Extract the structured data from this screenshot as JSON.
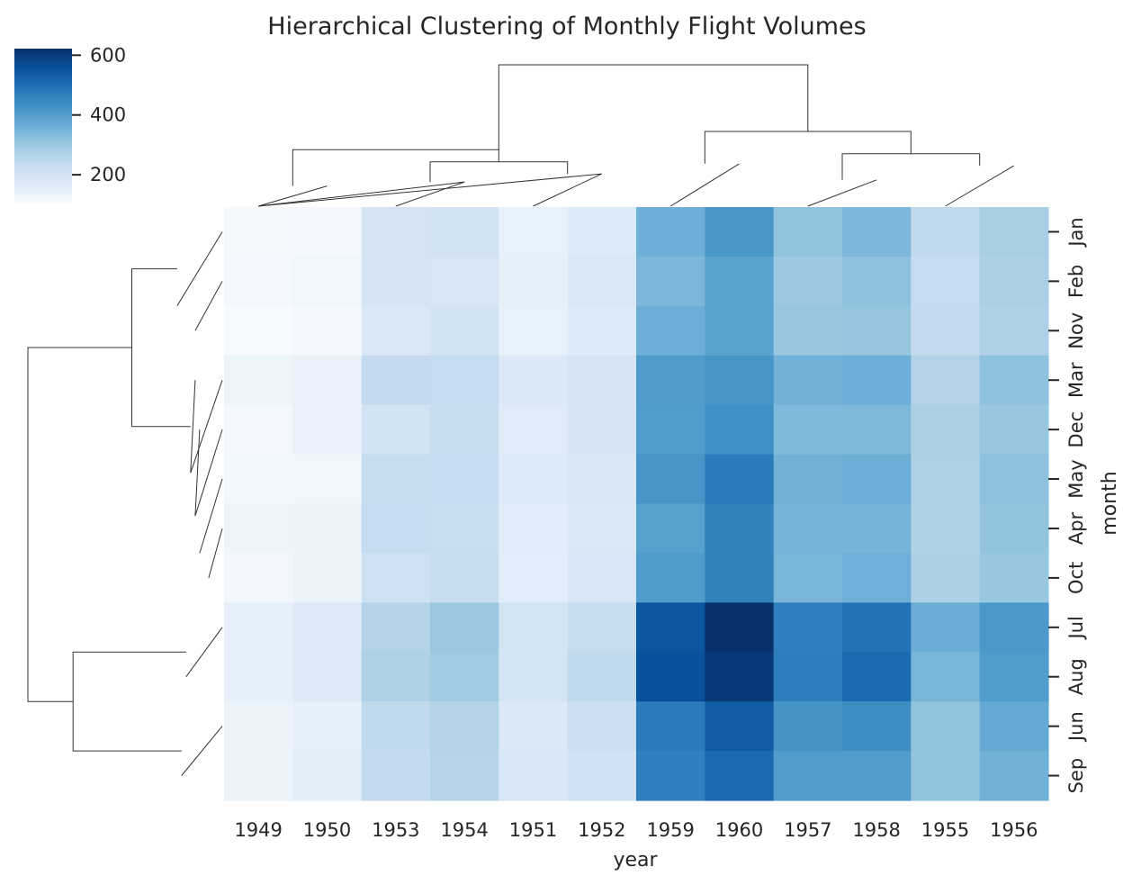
{
  "chart_data": {
    "type": "heatmap",
    "title": "Hierarchical Clustering of Monthly Flight Volumes",
    "xlabel": "year",
    "ylabel": "month",
    "x_categories": [
      "1949",
      "1950",
      "1953",
      "1954",
      "1951",
      "1952",
      "1959",
      "1960",
      "1957",
      "1958",
      "1955",
      "1956"
    ],
    "y_categories": [
      "Jan",
      "Feb",
      "Nov",
      "Mar",
      "Dec",
      "May",
      "Apr",
      "Oct",
      "Jul",
      "Aug",
      "Jun",
      "Sep"
    ],
    "values": [
      [
        112,
        115,
        196,
        204,
        145,
        171,
        360,
        417,
        315,
        340,
        242,
        284
      ],
      [
        118,
        126,
        196,
        188,
        150,
        180,
        342,
        391,
        301,
        318,
        233,
        277
      ],
      [
        104,
        114,
        180,
        203,
        146,
        172,
        362,
        390,
        305,
        310,
        237,
        271
      ],
      [
        132,
        141,
        236,
        235,
        178,
        193,
        406,
        419,
        356,
        362,
        267,
        317
      ],
      [
        118,
        140,
        201,
        229,
        166,
        194,
        405,
        432,
        336,
        337,
        278,
        306
      ],
      [
        121,
        125,
        229,
        234,
        172,
        183,
        420,
        472,
        355,
        363,
        270,
        318
      ],
      [
        129,
        135,
        235,
        227,
        163,
        181,
        396,
        461,
        348,
        348,
        269,
        313
      ],
      [
        119,
        133,
        211,
        229,
        162,
        191,
        407,
        461,
        347,
        359,
        274,
        306
      ],
      [
        148,
        170,
        264,
        302,
        199,
        230,
        548,
        622,
        465,
        491,
        364,
        413
      ],
      [
        148,
        170,
        272,
        293,
        199,
        242,
        559,
        606,
        467,
        505,
        347,
        405
      ],
      [
        135,
        149,
        243,
        264,
        178,
        218,
        472,
        535,
        422,
        435,
        315,
        374
      ],
      [
        136,
        158,
        237,
        259,
        184,
        209,
        463,
        508,
        404,
        404,
        312,
        355
      ]
    ],
    "colormap": "Blues",
    "colorbar": {
      "vmin": 104,
      "vmax": 622,
      "ticks": [
        200,
        400,
        600
      ],
      "placement": "top-left"
    },
    "dendrogram_columns": [
      [
        [
          0,
          1,
          1,
          0
        ],
        [
          0,
          1,
          1,
          0
        ]
      ],
      [
        [
          2,
          3,
          3,
          0
        ],
        [
          0,
          1.2,
          1.2,
          0
        ]
      ],
      [
        [
          4,
          5,
          5,
          0
        ],
        [
          0,
          1.6,
          1.6,
          0
        ]
      ],
      [
        [
          2.5,
          2.5,
          4.5,
          4.5
        ],
        [
          1.2,
          2.2,
          2.2,
          1.6
        ]
      ],
      [
        [
          0.5,
          0.5,
          3.5,
          3.5
        ],
        [
          1,
          2.8,
          2.8,
          2.2
        ]
      ],
      [
        [
          6,
          7,
          7,
          6
        ],
        [
          0,
          2.1,
          2.1,
          0
        ]
      ],
      [
        [
          8,
          9,
          9,
          8
        ],
        [
          0,
          1.3,
          1.3,
          0
        ]
      ],
      [
        [
          10,
          11,
          11,
          10
        ],
        [
          0,
          2.0,
          2.0,
          0
        ]
      ],
      [
        [
          8.5,
          8.5,
          10.5,
          10.5
        ],
        [
          1.3,
          2.6,
          2.6,
          2.0
        ]
      ],
      [
        [
          6.5,
          6.5,
          9.5,
          9.5
        ],
        [
          2.1,
          3.7,
          3.7,
          2.6
        ]
      ],
      [
        [
          3.5,
          3.5,
          8,
          8
        ],
        [
          2.8,
          7.0,
          7.0,
          3.7
        ]
      ]
    ],
    "dendrogram_rows": [
      [
        [
          1,
          2,
          2,
          1
        ],
        [
          0,
          0.6,
          0.6,
          0
        ]
      ],
      [
        [
          0,
          1.5,
          1.5,
          0
        ],
        [
          0,
          1.0,
          1.0,
          0
        ]
      ],
      [
        [
          6,
          7,
          7,
          6
        ],
        [
          0,
          0.3,
          0.3,
          0
        ]
      ],
      [
        [
          5,
          6.5,
          6.5,
          5
        ],
        [
          0,
          0.5,
          0.5,
          0
        ]
      ],
      [
        [
          4,
          5.75,
          5.75,
          4
        ],
        [
          0,
          0.6,
          0.6,
          0.5
        ]
      ],
      [
        [
          3,
          4.875,
          4.875,
          3
        ],
        [
          0,
          0.7,
          0.7,
          0.6
        ]
      ],
      [
        [
          0.75,
          0.75,
          3.94,
          3.94
        ],
        [
          1.0,
          2.0,
          2.0,
          0.7
        ]
      ],
      [
        [
          8,
          9,
          9,
          8
        ],
        [
          0,
          0.8,
          0.8,
          0
        ]
      ],
      [
        [
          10,
          11,
          11,
          10
        ],
        [
          0,
          0.9,
          0.9,
          0
        ]
      ],
      [
        [
          8.5,
          8.5,
          10.5,
          10.5
        ],
        [
          0.8,
          3.3,
          3.3,
          0.9
        ]
      ],
      [
        [
          2.34,
          2.34,
          9.5,
          9.5
        ],
        [
          2.0,
          4.3,
          4.3,
          3.3
        ]
      ]
    ]
  }
}
